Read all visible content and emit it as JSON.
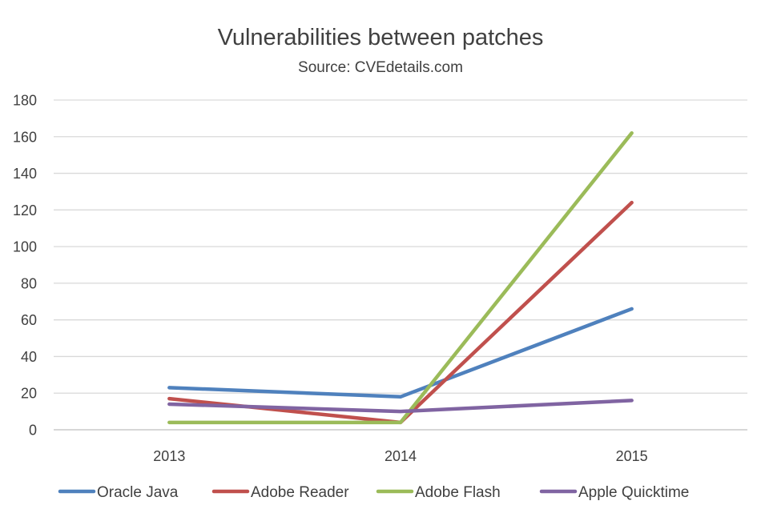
{
  "chart_data": {
    "type": "line",
    "title": "Vulnerabilities between patches",
    "subtitle": "Source: CVEdetails.com",
    "categories": [
      "2013",
      "2014",
      "2015"
    ],
    "ylim": [
      0,
      180
    ],
    "yticks": [
      0,
      20,
      40,
      60,
      80,
      100,
      120,
      140,
      160,
      180
    ],
    "grid": true,
    "legend_position": "bottom",
    "series": [
      {
        "name": "Oracle Java",
        "color": "#4f81bd",
        "values": [
          23,
          18,
          66
        ]
      },
      {
        "name": "Adobe Reader",
        "color": "#c0504d",
        "values": [
          17,
          4,
          124
        ]
      },
      {
        "name": "Adobe Flash",
        "color": "#9bbb59",
        "values": [
          4,
          4,
          162
        ]
      },
      {
        "name": "Apple Quicktime",
        "color": "#8064a2",
        "values": [
          14,
          10,
          16
        ]
      }
    ]
  }
}
